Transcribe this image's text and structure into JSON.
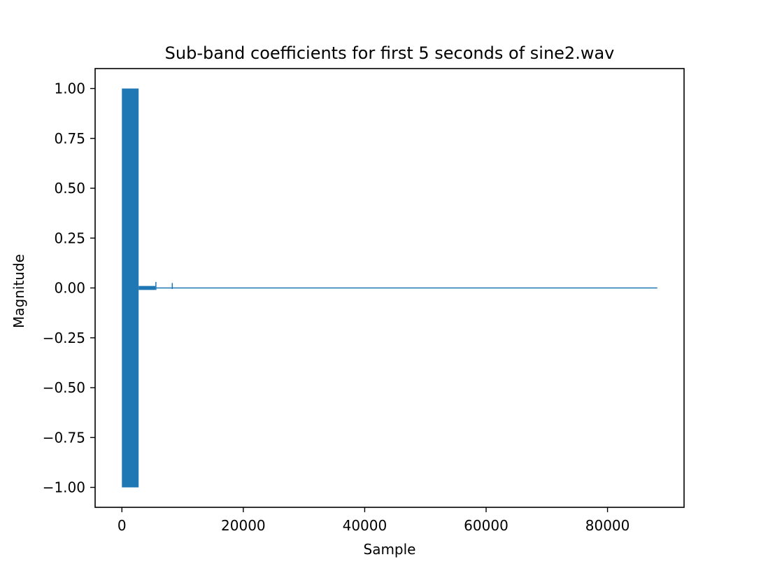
{
  "chart_data": {
    "type": "line",
    "title": "Sub-band coefficients for first 5 seconds of sine2.wav",
    "xlabel": "Sample",
    "ylabel": "Magnitude",
    "xlim": [
      -4410,
      92610
    ],
    "ylim": [
      -1.1,
      1.1
    ],
    "x_ticks": [
      0,
      20000,
      40000,
      60000,
      80000
    ],
    "x_tick_labels": [
      "0",
      "20000",
      "40000",
      "60000",
      "80000"
    ],
    "y_ticks": [
      1.0,
      0.75,
      0.5,
      0.25,
      0.0,
      -0.25,
      -0.5,
      -0.75,
      -1.0
    ],
    "y_tick_labels": [
      "1.00",
      "0.75",
      "0.50",
      "0.25",
      "0.00",
      "−0.25",
      "−0.50",
      "−0.75",
      "−1.00"
    ],
    "grid": false,
    "legend": "none",
    "series_color": "#1f77b4",
    "series": [
      {
        "segments": [
          {
            "x_start": 0,
            "x_end": 2756,
            "y_min": -1.0,
            "y_max": 1.0
          },
          {
            "x_start": 2756,
            "x_end": 5512,
            "y_min": -0.01,
            "y_max": 0.01
          },
          {
            "x_start": 5512,
            "x_end": 88200,
            "y_min": -0.002,
            "y_max": 0.002
          }
        ],
        "spikes": [
          {
            "x": 5600,
            "y_min": -0.01,
            "y_max": 0.03
          },
          {
            "x": 8300,
            "y_min": -0.005,
            "y_max": 0.025
          }
        ]
      }
    ]
  }
}
